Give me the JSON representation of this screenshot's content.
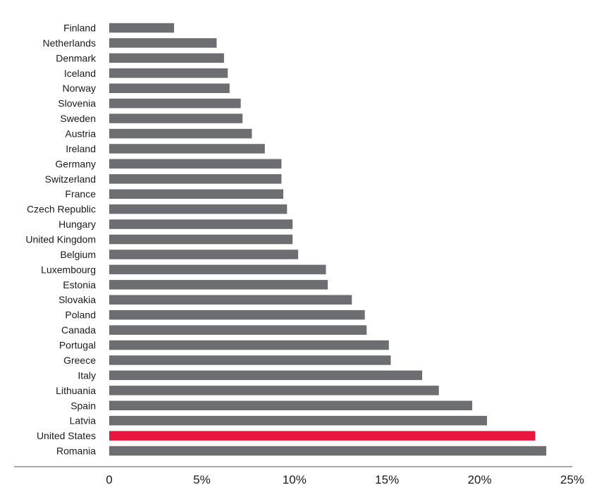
{
  "chart_data": {
    "type": "bar",
    "orientation": "horizontal",
    "categories": [
      "Finland",
      "Netherlands",
      "Denmark",
      "Iceland",
      "Norway",
      "Slovenia",
      "Sweden",
      "Austria",
      "Ireland",
      "Germany",
      "Switzerland",
      "France",
      "Czech Republic",
      "Hungary",
      "United Kingdom",
      "Belgium",
      "Luxembourg",
      "Estonia",
      "Slovakia",
      "Poland",
      "Canada",
      "Portugal",
      "Greece",
      "Italy",
      "Lithuania",
      "Spain",
      "Latvia",
      "United States",
      "Romania"
    ],
    "values": [
      3.5,
      5.8,
      6.2,
      6.4,
      6.5,
      7.1,
      7.2,
      7.7,
      8.4,
      9.3,
      9.3,
      9.4,
      9.6,
      9.9,
      9.9,
      10.2,
      11.7,
      11.8,
      13.1,
      13.8,
      13.9,
      15.1,
      15.2,
      16.9,
      17.8,
      19.6,
      20.4,
      23.0,
      23.6
    ],
    "xticks": [
      "0",
      "5%",
      "10%",
      "15%",
      "20%",
      "25%"
    ],
    "xtick_values": [
      0,
      5,
      10,
      15,
      20,
      25
    ],
    "xlim": [
      0,
      25
    ],
    "title": "",
    "xlabel": "",
    "ylabel": "",
    "grid": false,
    "colors": {
      "default": "#6d6e71",
      "highlight": "#e8173f"
    },
    "highlight_category": "United States"
  }
}
